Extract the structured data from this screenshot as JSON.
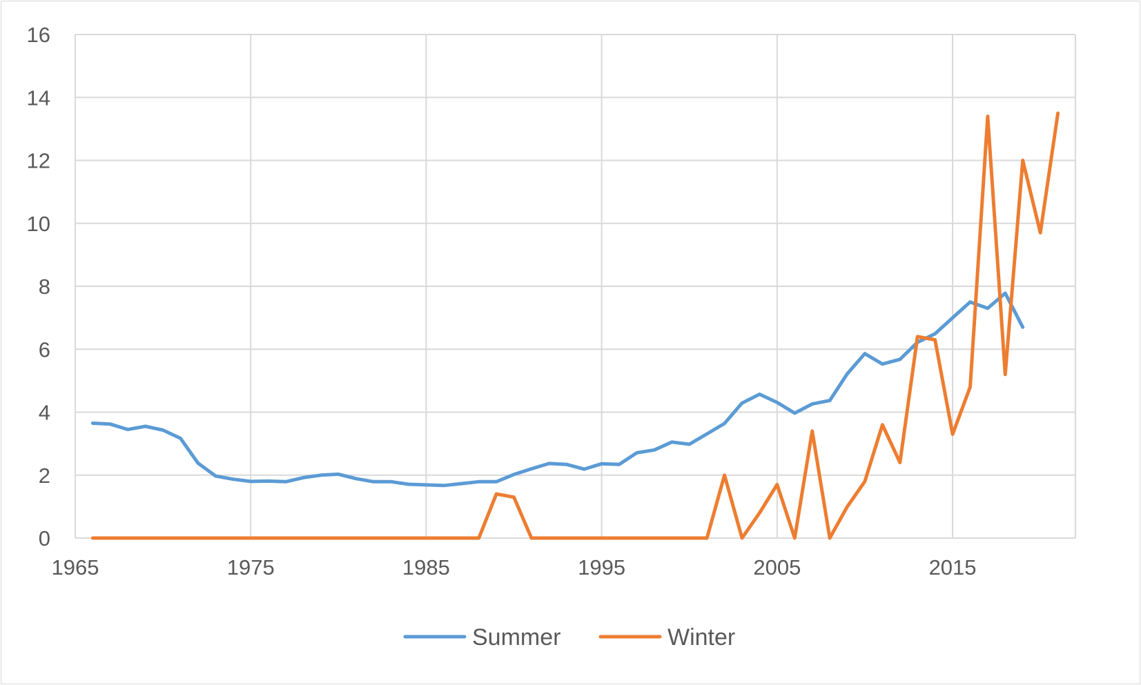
{
  "chart_data": {
    "type": "line",
    "title": "",
    "xlabel": "",
    "ylabel": "",
    "xlim": [
      1965,
      2022
    ],
    "ylim": [
      0,
      16
    ],
    "x_ticks": [
      "1965",
      "1975",
      "1985",
      "1995",
      "2005",
      "2015"
    ],
    "y_ticks": [
      "0",
      "2",
      "4",
      "6",
      "8",
      "10",
      "12",
      "14",
      "16"
    ],
    "grid": true,
    "legend_position": "bottom",
    "series": [
      {
        "name": "Summer",
        "color": "#5b9bd5",
        "x": [
          1966,
          1967,
          1968,
          1969,
          1970,
          1971,
          1972,
          1973,
          1974,
          1975,
          1976,
          1977,
          1978,
          1979,
          1980,
          1981,
          1982,
          1983,
          1984,
          1985,
          1986,
          1987,
          1988,
          1989,
          1990,
          1991,
          1992,
          1993,
          1994,
          1995,
          1996,
          1997,
          1998,
          1999,
          2000,
          2001,
          2002,
          2003,
          2004,
          2005,
          2006,
          2007,
          2008,
          2009,
          2010,
          2011,
          2012,
          2013,
          2014,
          2015,
          2016,
          2017,
          2018,
          2019
        ],
        "values": [
          3.65,
          3.62,
          3.45,
          3.55,
          3.43,
          3.17,
          2.38,
          1.97,
          1.87,
          1.8,
          1.81,
          1.79,
          1.92,
          2.0,
          2.03,
          1.89,
          1.79,
          1.79,
          1.71,
          1.69,
          1.67,
          1.73,
          1.79,
          1.79,
          2.02,
          2.2,
          2.37,
          2.34,
          2.19,
          2.36,
          2.34,
          2.71,
          2.8,
          3.05,
          2.98,
          3.31,
          3.64,
          4.29,
          4.57,
          4.31,
          3.97,
          4.26,
          4.37,
          5.22,
          5.86,
          5.53,
          5.68,
          6.22,
          6.49,
          7.0,
          7.5,
          7.3,
          7.78,
          6.7
        ]
      },
      {
        "name": "Winter",
        "color": "#ed7d31",
        "x": [
          1966,
          1967,
          1968,
          1969,
          1970,
          1971,
          1972,
          1973,
          1974,
          1975,
          1976,
          1977,
          1978,
          1979,
          1980,
          1981,
          1982,
          1983,
          1984,
          1985,
          1986,
          1987,
          1988,
          1989,
          1990,
          1991,
          1992,
          1993,
          1994,
          1995,
          1996,
          1997,
          1998,
          1999,
          2000,
          2001,
          2002,
          2003,
          2004,
          2005,
          2006,
          2007,
          2008,
          2009,
          2010,
          2011,
          2012,
          2013,
          2014,
          2015,
          2016,
          2017,
          2018,
          2019,
          2020,
          2021
        ],
        "values": [
          0,
          0,
          0,
          0,
          0,
          0,
          0,
          0,
          0,
          0,
          0,
          0,
          0,
          0,
          0,
          0,
          0,
          0,
          0,
          0,
          0,
          0,
          0,
          1.4,
          1.3,
          0,
          0,
          0,
          0,
          0,
          0,
          0,
          0,
          0,
          0,
          0,
          2.0,
          0,
          0.8,
          1.7,
          0,
          3.4,
          0,
          1.0,
          1.8,
          3.6,
          2.4,
          6.4,
          6.3,
          3.3,
          4.8,
          13.4,
          5.2,
          12.0,
          9.7,
          13.5
        ]
      }
    ]
  }
}
